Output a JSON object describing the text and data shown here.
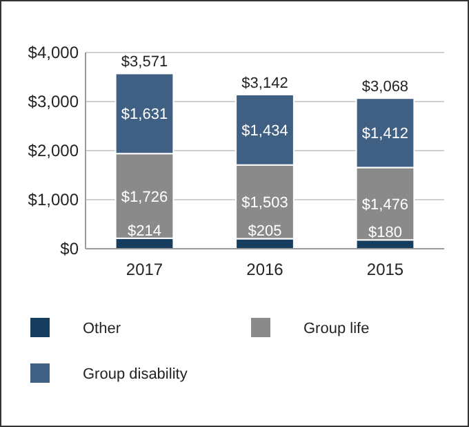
{
  "chart_data": {
    "type": "bar",
    "stacked": true,
    "categories": [
      "2017",
      "2016",
      "2015"
    ],
    "series": [
      {
        "name": "Other",
        "color": "#173d5e",
        "values": [
          214,
          205,
          180
        ],
        "value_labels": [
          "$214",
          "$205",
          "$180"
        ]
      },
      {
        "name": "Group life",
        "color": "#8a8a8a",
        "values": [
          1726,
          1503,
          1476
        ],
        "value_labels": [
          "$1,726",
          "$1,503",
          "$1,476"
        ]
      },
      {
        "name": "Group disability",
        "color": "#3f5f83",
        "values": [
          1631,
          1434,
          1412
        ],
        "value_labels": [
          "$1,631",
          "$1,434",
          "$1,412"
        ]
      }
    ],
    "totals": [
      "$3,571",
      "$3,142",
      "$3,068"
    ],
    "ylim": [
      0,
      4000
    ],
    "yticks": [
      {
        "value": 0,
        "label": "$0"
      },
      {
        "value": 1000,
        "label": "$1,000"
      },
      {
        "value": 2000,
        "label": "$2,000"
      },
      {
        "value": 3000,
        "label": "$3,000"
      },
      {
        "value": 4000,
        "label": "$4,000"
      }
    ],
    "grid": "y",
    "legend": "bottom"
  }
}
